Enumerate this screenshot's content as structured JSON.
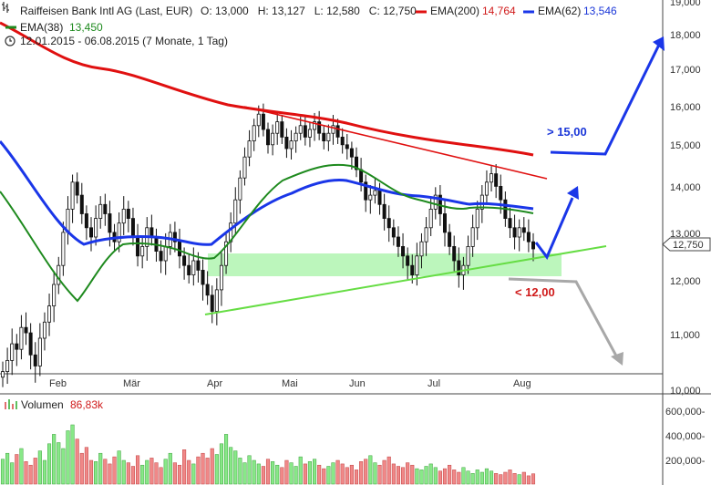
{
  "header": {
    "title": "Raiffeisen Bank Intl AG (Last, EUR)",
    "ohlc": "O: 13,000   H: 13,127   L: 12,580   C: 12,750",
    "ema200_label": "EMA(200)",
    "ema200_value": "14,764",
    "ema62_label": "EMA(62)",
    "ema62_value": "13,546",
    "ema38_label": "EMA(38)",
    "ema38_value": "13,450",
    "period": "12.01.2015 - 06.08.2015 (7 Monate, 1 Tag)"
  },
  "annotations": {
    "target_up": "> 15,00",
    "target_down": "< 12,00",
    "last_price_tag": "12,750"
  },
  "colors": {
    "ema200": "#e01010",
    "ema62": "#1a36e8",
    "ema38": "#1e8a1e",
    "support_zone": "#b8f5b8",
    "support_line": "#66dd44",
    "resistance_line": "#e01010",
    "arrow_up": "#1a36e8",
    "arrow_down": "#a8a8a8",
    "volume_up": "#88e888",
    "volume_down": "#f08888"
  },
  "chart_data": [
    {
      "type": "candlestick",
      "title": "Raiffeisen Bank Intl AG (Last, EUR)",
      "x_tick_labels": [
        "Feb",
        "Mär",
        "Apr",
        "Mai",
        "Jun",
        "Jul",
        "Aug"
      ],
      "y_tick_labels": [
        "10,000",
        "11,000",
        "12,000",
        "13,000",
        "14,000",
        "15,000",
        "16,000",
        "17,000",
        "18,000",
        "19,000"
      ],
      "ylim": [
        10.0,
        19.0
      ],
      "grid": false,
      "close_series_approx": [
        10.4,
        10.6,
        10.9,
        10.8,
        11.2,
        11.1,
        10.7,
        10.5,
        11.0,
        11.3,
        11.6,
        12.0,
        12.4,
        13.1,
        13.6,
        14.2,
        13.9,
        13.5,
        13.2,
        13.0,
        13.4,
        13.7,
        13.5,
        13.1,
        12.9,
        13.3,
        13.6,
        13.4,
        13.0,
        12.6,
        12.8,
        13.2,
        13.0,
        12.7,
        12.5,
        12.8,
        13.1,
        12.9,
        12.6,
        12.4,
        12.2,
        12.5,
        12.3,
        12.0,
        11.8,
        11.5,
        11.9,
        12.4,
        12.9,
        13.3,
        13.8,
        14.3,
        14.8,
        15.2,
        15.6,
        15.9,
        15.5,
        15.1,
        15.4,
        15.7,
        15.3,
        15.0,
        15.2,
        15.4,
        15.6,
        15.3,
        15.5,
        15.7,
        15.4,
        15.2,
        15.4,
        15.6,
        15.3,
        15.1,
        15.0,
        14.8,
        14.5,
        14.2,
        13.8,
        13.9,
        14.0,
        13.7,
        13.4,
        13.2,
        13.0,
        12.8,
        12.6,
        12.4,
        12.2,
        12.6,
        12.9,
        13.2,
        13.6,
        13.9,
        13.5,
        13.1,
        12.8,
        12.5,
        12.2,
        12.4,
        12.8,
        13.2,
        13.6,
        13.9,
        14.2,
        14.4,
        14.1,
        13.8,
        13.4,
        13.2,
        13.0,
        13.2,
        13.1,
        12.9,
        12.75
      ],
      "series": [
        {
          "name": "EMA(200)",
          "values": [
            18.6,
            18.2,
            17.8,
            17.5,
            17.2,
            17.0,
            16.8,
            16.6,
            16.4,
            16.25,
            16.1,
            16.0,
            15.95,
            15.9,
            15.85,
            15.7,
            15.5,
            15.2,
            15.0,
            14.9,
            14.8,
            14.76
          ]
        },
        {
          "name": "EMA(62)",
          "values": [
            15.3,
            14.7,
            14.1,
            13.6,
            13.1,
            12.9,
            12.95,
            12.95,
            12.9,
            12.8,
            12.7,
            12.85,
            13.4,
            13.9,
            14.1,
            14.2,
            14.35,
            14.4,
            14.1,
            13.85,
            13.75,
            13.7,
            13.55
          ]
        },
        {
          "name": "EMA(38)",
          "values": [
            14.0,
            13.2,
            12.6,
            12.0,
            11.7,
            11.9,
            12.6,
            12.85,
            12.8,
            12.6,
            12.45,
            12.4,
            12.9,
            13.7,
            14.2,
            14.4,
            14.55,
            14.6,
            14.45,
            14.2,
            13.85,
            13.6,
            13.6,
            13.45
          ]
        }
      ],
      "annotations": [
        "> 15,00",
        "< 12,00",
        "12,750"
      ]
    },
    {
      "type": "bar",
      "title": "Volumen",
      "legend_value": "86,83k",
      "y_tick_labels": [
        "200,000-",
        "400,000-",
        "600,000-"
      ],
      "ylim": [
        0,
        700000
      ],
      "values_approx": [
        210000,
        260000,
        180000,
        250000,
        300000,
        190000,
        160000,
        220000,
        280000,
        200000,
        340000,
        420000,
        350000,
        300000,
        450000,
        500000,
        380000,
        260000,
        310000,
        200000,
        190000,
        260000,
        210000,
        170000,
        230000,
        280000,
        200000,
        180000,
        150000,
        240000,
        160000,
        200000,
        220000,
        180000,
        140000,
        210000,
        260000,
        180000,
        160000,
        290000,
        200000,
        170000,
        230000,
        260000,
        220000,
        300000,
        250000,
        340000,
        420000,
        310000,
        280000,
        220000,
        180000,
        240000,
        200000,
        170000,
        150000,
        210000,
        190000,
        160000,
        140000,
        200000,
        180000,
        150000,
        230000,
        170000,
        190000,
        210000,
        160000,
        130000,
        150000,
        180000,
        200000,
        170000,
        140000,
        160000,
        120000,
        190000,
        210000,
        240000,
        180000,
        160000,
        200000,
        230000,
        170000,
        150000,
        140000,
        180000,
        160000,
        130000,
        120000,
        150000,
        170000,
        140000,
        110000,
        130000,
        160000,
        120000,
        100000,
        140000,
        110000,
        90000,
        120000,
        100000,
        130000,
        110000,
        90000,
        80000,
        100000,
        120000,
        90000,
        80000,
        100000,
        70000,
        86830
      ]
    }
  ]
}
